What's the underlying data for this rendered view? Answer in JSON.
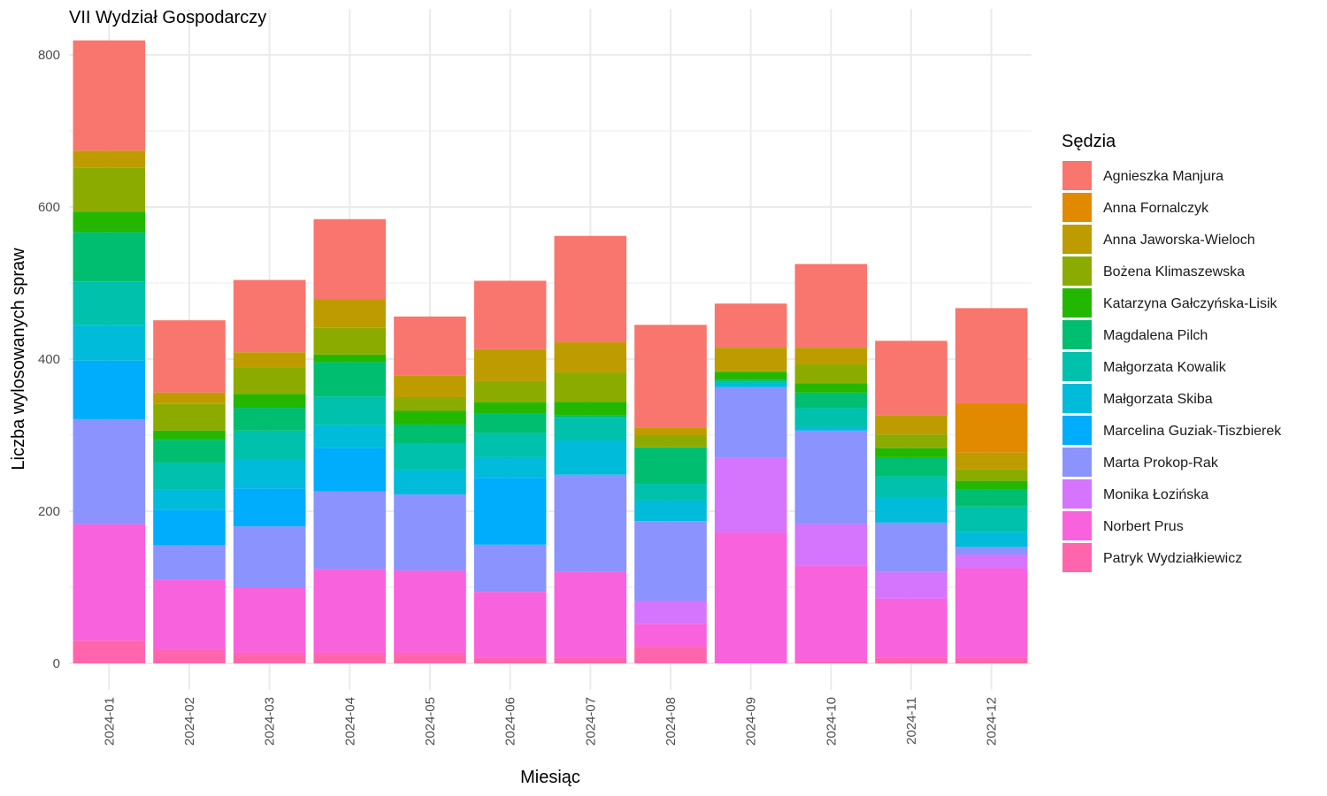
{
  "chart_data": {
    "type": "bar",
    "stacked": true,
    "title": "VII Wydział Gospodarczy",
    "xlabel": "Miesiąc",
    "ylabel": "Liczba wylosowanych spraw",
    "ylim": [
      0,
      840
    ],
    "yticks": [
      0,
      200,
      400,
      600,
      800
    ],
    "grid": true,
    "legend_title": "Sędzia",
    "legend_position": "right",
    "categories": [
      "2024-01",
      "2024-02",
      "2024-03",
      "2024-04",
      "2024-05",
      "2024-06",
      "2024-07",
      "2024-08",
      "2024-09",
      "2024-10",
      "2024-11",
      "2024-12"
    ],
    "series": [
      {
        "name": "Agnieszka Manjura",
        "color": "#F8766D",
        "values": [
          145,
          95,
          95,
          105,
          78,
          90,
          140,
          135,
          58,
          110,
          98,
          125
        ]
      },
      {
        "name": "Anna Fornalczyk",
        "color": "#E18A00",
        "values": [
          0,
          0,
          0,
          0,
          0,
          0,
          0,
          0,
          0,
          0,
          0,
          65
        ]
      },
      {
        "name": "Anna Jaworska-Wieloch",
        "color": "#BE9C00",
        "values": [
          22,
          15,
          20,
          38,
          28,
          42,
          40,
          10,
          30,
          22,
          25,
          22
        ]
      },
      {
        "name": "Bożena Klimaszewska",
        "color": "#8CAB00",
        "values": [
          58,
          35,
          35,
          35,
          18,
          28,
          38,
          16,
          2,
          25,
          18,
          15
        ]
      },
      {
        "name": "Katarzyna Gałczyńska-Lisik",
        "color": "#24B700",
        "values": [
          27,
          12,
          18,
          10,
          18,
          15,
          18,
          0,
          10,
          12,
          12,
          12
        ]
      },
      {
        "name": "Magdalena Pilch",
        "color": "#00BE70",
        "values": [
          65,
          30,
          30,
          45,
          25,
          25,
          3,
          48,
          3,
          20,
          25,
          22
        ]
      },
      {
        "name": "Małgorzata Kowalik",
        "color": "#00C1AB",
        "values": [
          57,
          35,
          38,
          38,
          35,
          32,
          30,
          22,
          2,
          25,
          28,
          33
        ]
      },
      {
        "name": "Małgorzata Skiba",
        "color": "#00BBDA",
        "values": [
          47,
          27,
          38,
          30,
          32,
          27,
          45,
          27,
          5,
          5,
          33,
          20
        ]
      },
      {
        "name": "Marcelina Guziak-Tiszbierek",
        "color": "#00ACFC",
        "values": [
          77,
          47,
          50,
          57,
          0,
          88,
          0,
          0,
          0,
          0,
          0,
          0
        ]
      },
      {
        "name": "Marta Prokop-Rak",
        "color": "#8B93FF",
        "values": [
          138,
          45,
          80,
          102,
          100,
          62,
          128,
          105,
          93,
          123,
          65,
          10
        ]
      },
      {
        "name": "Monika Łozińska",
        "color": "#D575FE",
        "values": [
          0,
          0,
          0,
          0,
          0,
          0,
          0,
          30,
          98,
          55,
          35,
          18
        ]
      },
      {
        "name": "Norbert Prus",
        "color": "#F962DD",
        "values": [
          153,
          92,
          86,
          110,
          108,
          86,
          112,
          30,
          172,
          125,
          77,
          117
        ]
      },
      {
        "name": "Patryk Wydziałkiewicz",
        "color": "#FF65AC",
        "values": [
          30,
          18,
          14,
          14,
          14,
          8,
          8,
          22,
          0,
          3,
          8,
          8
        ]
      }
    ]
  }
}
